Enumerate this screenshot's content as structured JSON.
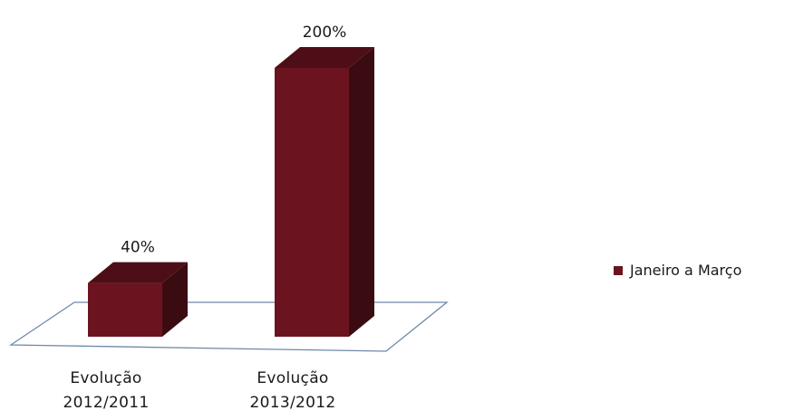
{
  "chart_data": {
    "type": "bar",
    "style": "3d-column",
    "categories": [
      [
        "Evolução",
        "2012/2011"
      ],
      [
        "Evolução",
        "2013/2012"
      ]
    ],
    "series": [
      {
        "name": "Janeiro a Março",
        "values": [
          40,
          200
        ],
        "data_labels": [
          "40%",
          "200%"
        ],
        "color": "#6b1420"
      }
    ],
    "unit": "%",
    "ylim": [
      0,
      200
    ],
    "grid": false,
    "legend": {
      "position": "right"
    }
  }
}
